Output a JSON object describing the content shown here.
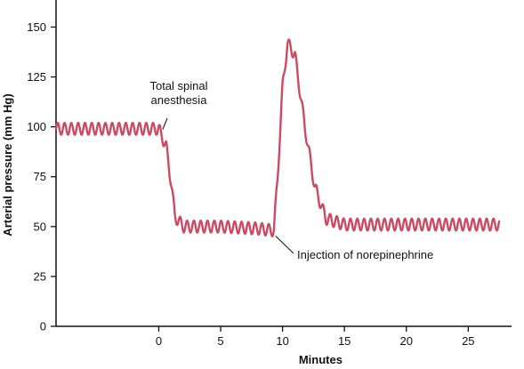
{
  "chart_data": {
    "type": "line",
    "title": "",
    "xlabel": "Minutes",
    "ylabel": "Arterial pressure (mm Hg)",
    "xlim": [
      -8.3,
      28.5
    ],
    "ylim": [
      0,
      160
    ],
    "xticks": [
      0,
      5,
      10,
      15,
      20,
      25
    ],
    "yticks": [
      0,
      25,
      50,
      75,
      100,
      125,
      150
    ],
    "grid": false,
    "legend": "none",
    "line_color": "#cc4b63",
    "series": [
      {
        "name": "",
        "oscillation": {
          "period": 0.55,
          "amplitude": 3
        },
        "points": [
          {
            "x": -8.3,
            "y": 99
          },
          {
            "x": 0.0,
            "y": 99
          },
          {
            "x": 0.6,
            "y": 90
          },
          {
            "x": 1.0,
            "y": 72
          },
          {
            "x": 1.3,
            "y": 55
          },
          {
            "x": 2.0,
            "y": 50
          },
          {
            "x": 5.0,
            "y": 50
          },
          {
            "x": 8.0,
            "y": 49
          },
          {
            "x": 9.3,
            "y": 48
          },
          {
            "x": 9.6,
            "y": 75
          },
          {
            "x": 10.0,
            "y": 120
          },
          {
            "x": 10.4,
            "y": 142
          },
          {
            "x": 11.0,
            "y": 136
          },
          {
            "x": 11.8,
            "y": 100
          },
          {
            "x": 12.6,
            "y": 70
          },
          {
            "x": 13.5,
            "y": 54
          },
          {
            "x": 15.0,
            "y": 51
          },
          {
            "x": 27.5,
            "y": 51
          }
        ]
      }
    ],
    "annotations": [
      {
        "text_lines": [
          "Total spinal",
          "anesthesia"
        ],
        "x": 0.1,
        "y": 100
      },
      {
        "text_lines": [
          "Injection of norepinephrine"
        ],
        "x": 9.3,
        "y": 47
      }
    ]
  }
}
